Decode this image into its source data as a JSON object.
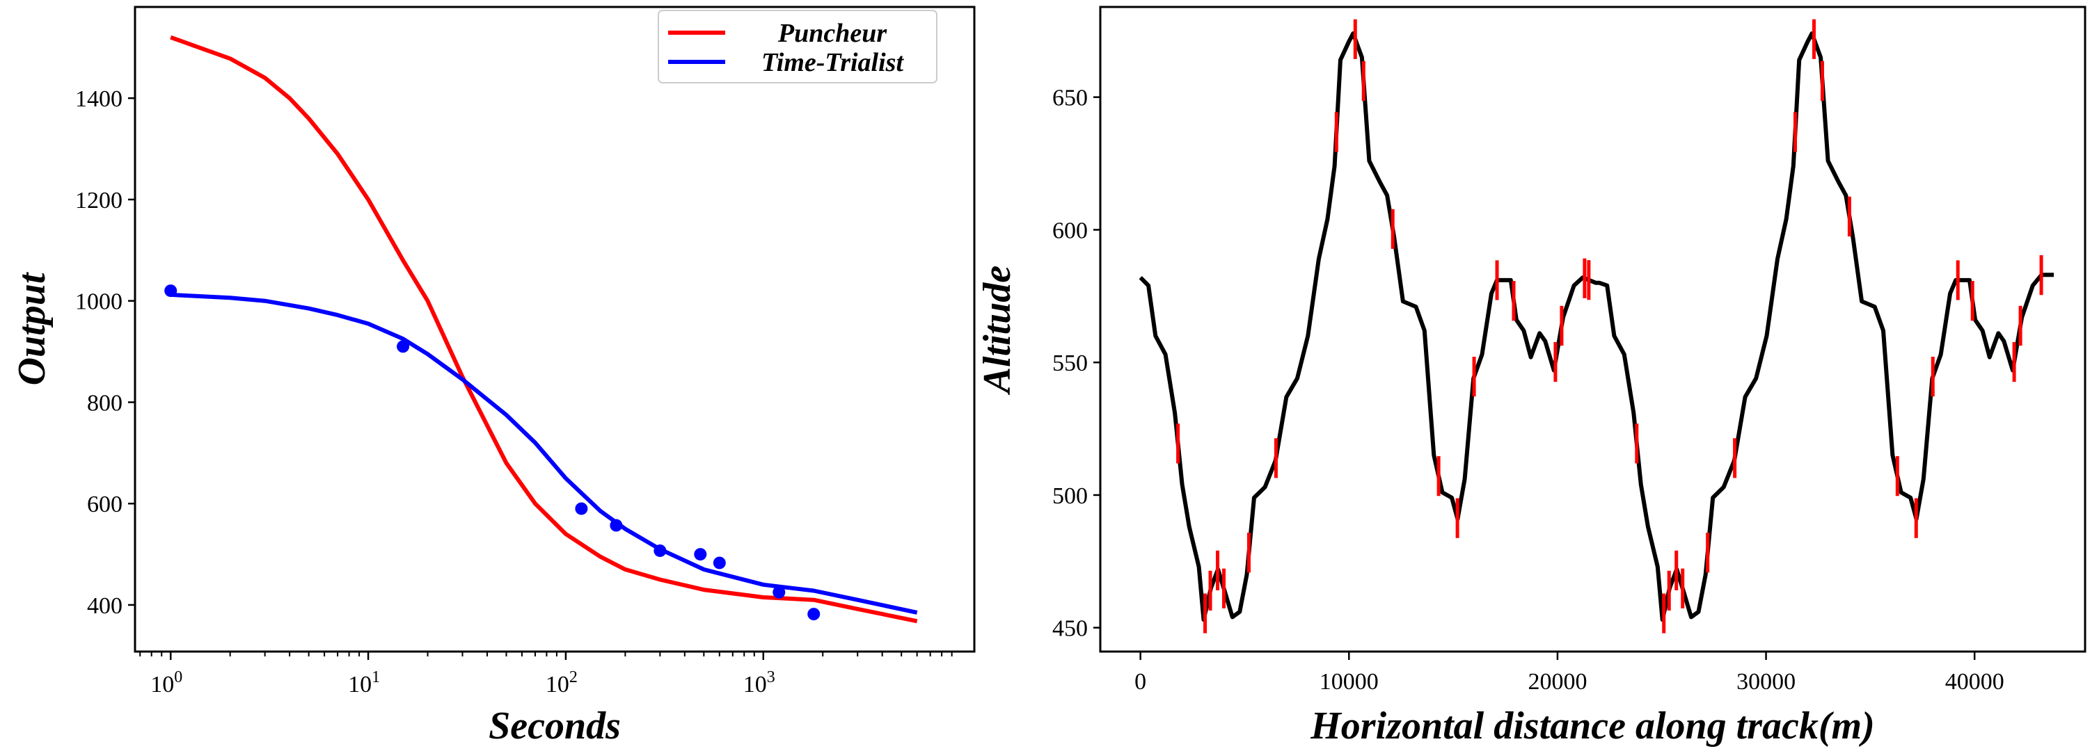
{
  "chart_data": [
    {
      "type": "line",
      "xscale": "log",
      "xlabel": "Seconds",
      "ylabel": "Output",
      "xlim": [
        0.66,
        11700
      ],
      "ylim": [
        308,
        1580
      ],
      "xticks": [
        {
          "v": 1,
          "exp": "0"
        },
        {
          "v": 10,
          "exp": "1"
        },
        {
          "v": 100,
          "exp": "2"
        },
        {
          "v": 1000,
          "exp": "3"
        }
      ],
      "yticks": [
        400,
        600,
        800,
        1000,
        1200,
        1400
      ],
      "legend": {
        "placement": "top-right",
        "entries": [
          "Puncheur",
          "Time-Trialist"
        ]
      },
      "series": [
        {
          "name": "Puncheur",
          "color": "#ff0000",
          "x": [
            1,
            2,
            3,
            4,
            5,
            7,
            10,
            15,
            20,
            30,
            50,
            70,
            100,
            150,
            200,
            300,
            500,
            1000,
            1800,
            3000,
            6000
          ],
          "y": [
            1520,
            1478,
            1440,
            1400,
            1360,
            1290,
            1200,
            1080,
            1000,
            850,
            680,
            600,
            540,
            495,
            470,
            450,
            430,
            415,
            410,
            392,
            368
          ]
        },
        {
          "name": "Time-Trialist",
          "color": "#0000ff",
          "x": [
            1,
            2,
            3,
            5,
            7,
            10,
            15,
            20,
            30,
            50,
            70,
            100,
            150,
            200,
            300,
            500,
            1000,
            1800,
            3000,
            6000
          ],
          "y": [
            1012,
            1006,
            1000,
            985,
            972,
            955,
            925,
            895,
            845,
            775,
            720,
            650,
            585,
            550,
            510,
            470,
            440,
            428,
            410,
            385
          ]
        },
        {
          "name": "Time-Trialist data",
          "color": "#0000ff",
          "type": "scatter",
          "x": [
            1,
            15,
            120,
            180,
            300,
            480,
            600,
            1200,
            1800
          ],
          "y": [
            1020,
            910,
            590,
            557,
            507,
            500,
            483,
            425,
            382
          ]
        }
      ]
    },
    {
      "type": "line",
      "xlabel": "Horizontal distance along track(m)",
      "ylabel": "Altitude",
      "xlim": [
        -1925,
        45300
      ],
      "ylim": [
        441,
        684
      ],
      "xticks": [
        0,
        10000,
        20000,
        30000,
        40000
      ],
      "yticks": [
        450,
        500,
        550,
        600,
        650
      ],
      "series": [
        {
          "name": "profile",
          "color": "#000000",
          "x": [
            0,
            380,
            720,
            1200,
            1650,
            2000,
            2340,
            2800,
            3030,
            3380,
            3720,
            4070,
            4410,
            4760,
            5100,
            5450,
            5970,
            6480,
            7000,
            7520,
            8030,
            8550,
            8970,
            9310,
            9590,
            10000,
            10200,
            10620,
            10970,
            11480,
            11830,
            12170,
            12590,
            13210,
            13620,
            14070,
            14480,
            14930,
            15210,
            15550,
            15970,
            16380,
            16830,
            17100,
            17760,
            18030,
            18380,
            18720,
            19140,
            19410,
            19830,
            20270,
            20790,
            21210,
            21830,
            22000,
            22380,
            22720,
            23200,
            23650,
            24000,
            24340,
            24800,
            25030,
            25380,
            25720,
            26070,
            26410,
            26760,
            27100,
            27450,
            27970,
            28480,
            29000,
            29520,
            30030,
            30550,
            30970,
            31310,
            31590,
            32000,
            32200,
            32620,
            32970,
            33480,
            33830,
            34170,
            34590,
            35210,
            35620,
            36070,
            36480,
            36930,
            37210,
            37550,
            37970,
            38380,
            38830,
            39100,
            39760,
            40030,
            40380,
            40720,
            41140,
            41410,
            41830,
            42270,
            42790,
            43210,
            43800
          ],
          "y": [
            582,
            579,
            560,
            553,
            531,
            504,
            488,
            473,
            453,
            465,
            472,
            463,
            454,
            456,
            470,
            499,
            503,
            513,
            537,
            544,
            560,
            589,
            604,
            624,
            664,
            671,
            674,
            665,
            626,
            618,
            613,
            597,
            573,
            571,
            562,
            515,
            501,
            499,
            491,
            506,
            544,
            553,
            576,
            581,
            581,
            566,
            562,
            552,
            561,
            558,
            547,
            567,
            579,
            582,
            580,
            580,
            579,
            560,
            553,
            531,
            504,
            488,
            473,
            453,
            465,
            472,
            463,
            454,
            456,
            470,
            499,
            503,
            513,
            537,
            544,
            560,
            589,
            604,
            624,
            664,
            671,
            674,
            665,
            626,
            618,
            613,
            597,
            573,
            571,
            562,
            515,
            501,
            499,
            491,
            506,
            544,
            553,
            576,
            581,
            581,
            566,
            562,
            552,
            561,
            558,
            547,
            567,
            579,
            583,
            583
          ]
        },
        {
          "name": "markers",
          "color": "#ff0000",
          "type": "vlines",
          "half_height": 7.5,
          "x": [
            1800,
            3100,
            3350,
            3700,
            4000,
            5200,
            6500,
            9400,
            10300,
            10700,
            12100,
            14300,
            15200,
            16000,
            17100,
            17900,
            19900,
            20200,
            21300,
            21500,
            23800,
            25100,
            25350,
            25700,
            26000,
            27200,
            28500,
            31400,
            32300,
            32700,
            34000,
            36300,
            37200,
            38000,
            39200,
            39900,
            41900,
            42200,
            43200
          ]
        }
      ]
    }
  ]
}
